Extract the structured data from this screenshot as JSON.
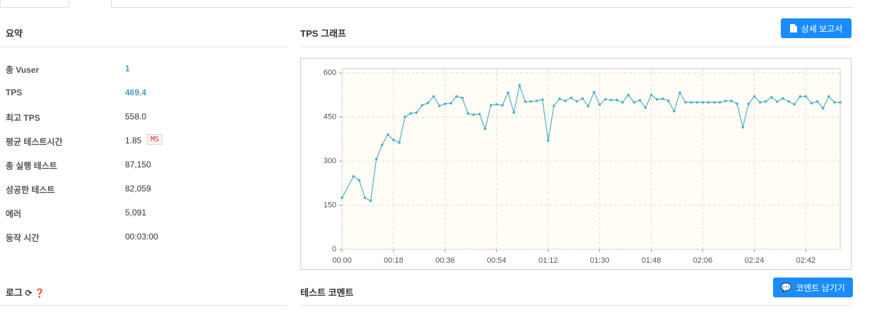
{
  "summary": {
    "title": "요약",
    "rows": [
      {
        "label": "총 Vuser",
        "value": "1"
      },
      {
        "label": "TPS",
        "value": "469.4"
      },
      {
        "label": "최고 TPS",
        "value": "558.0"
      },
      {
        "label": "평균 테스트시간",
        "value": "1.85",
        "unit": "MS"
      },
      {
        "label": "총 실행 테스트",
        "value": "87,150"
      },
      {
        "label": "성공한 테스트",
        "value": "82,059"
      },
      {
        "label": "에러",
        "value": "5,091"
      },
      {
        "label": "동작 시간",
        "value": "00:03:00"
      }
    ]
  },
  "graph": {
    "title": "TPS 그래프",
    "button": "상세 보고서"
  },
  "log": {
    "title": "로그"
  },
  "comment": {
    "title": "테스트 코멘트",
    "button": "코멘트 남기기"
  },
  "chart_data": {
    "type": "line",
    "color": "#4fb0c6",
    "x": [
      0,
      4,
      6,
      8,
      10,
      12,
      14,
      16,
      18,
      20,
      22,
      24,
      26,
      28,
      30,
      32,
      34,
      36,
      38,
      40,
      42,
      44,
      46,
      48,
      50,
      52,
      54,
      56,
      58,
      60,
      62,
      64,
      66,
      68,
      70,
      72,
      74,
      76,
      78,
      80,
      82,
      84,
      86,
      88,
      90,
      92,
      94,
      96,
      98,
      100,
      102,
      104,
      106,
      108,
      110,
      112,
      114,
      116,
      118,
      120,
      122,
      124,
      126,
      128,
      130,
      132,
      134,
      136,
      138,
      140,
      142,
      144,
      146,
      148,
      150,
      152,
      154,
      156,
      158,
      160,
      162,
      164,
      166,
      168,
      170,
      172,
      174
    ],
    "values": [
      175,
      248,
      235,
      175,
      165,
      307,
      355,
      390,
      372,
      363,
      450,
      462,
      465,
      490,
      498,
      520,
      488,
      495,
      497,
      520,
      515,
      462,
      458,
      460,
      410,
      490,
      493,
      490,
      533,
      465,
      558,
      502,
      503,
      505,
      509,
      370,
      488,
      512,
      505,
      515,
      503,
      513,
      487,
      534,
      492,
      510,
      508,
      508,
      500,
      525,
      500,
      507,
      482,
      525,
      510,
      512,
      505,
      470,
      533,
      500,
      500,
      500,
      500,
      500,
      500,
      500,
      505,
      505,
      495,
      415,
      495,
      520,
      500,
      503,
      517,
      502,
      513,
      503,
      493,
      520,
      520,
      497,
      503,
      480,
      520,
      500,
      500
    ],
    "xlim": [
      0,
      174
    ],
    "ylim": [
      0,
      615
    ],
    "xticks": [
      {
        "value": 0,
        "label": "00:00"
      },
      {
        "value": 18,
        "label": "00:18"
      },
      {
        "value": 36,
        "label": "00:36"
      },
      {
        "value": 54,
        "label": "00:54"
      },
      {
        "value": 72,
        "label": "01:12"
      },
      {
        "value": 90,
        "label": "01:30"
      },
      {
        "value": 108,
        "label": "01:48"
      },
      {
        "value": 126,
        "label": "02:06"
      },
      {
        "value": 144,
        "label": "02:24"
      },
      {
        "value": 162,
        "label": "02:42"
      }
    ],
    "yticks": [
      0,
      150,
      300,
      450,
      600
    ],
    "grid": true
  }
}
